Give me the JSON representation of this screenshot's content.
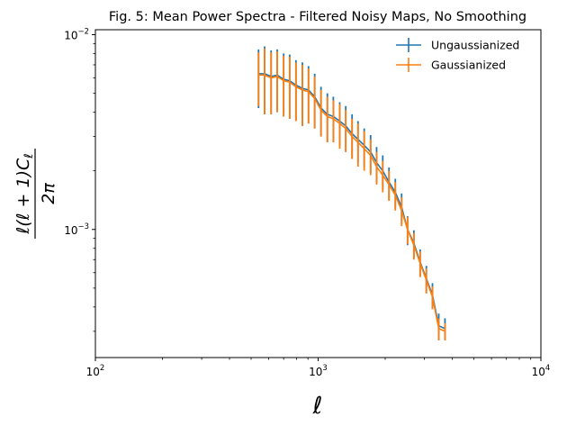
{
  "chart_data": {
    "type": "line",
    "title": "Fig. 5: Mean Power Spectra - Filtered Noisy Maps, No Smoothing",
    "xlabel": "ℓ",
    "ylabel": "ℓ(ℓ + 1)Cℓ / 2π",
    "ylabel_numerator": "ℓ(ℓ + 1)C",
    "ylabel_sub": "ℓ",
    "ylabel_denominator": "2π",
    "xscale": "log",
    "yscale": "log",
    "xlim": [
      100,
      10000
    ],
    "ylim": [
      0.00022,
      0.0106
    ],
    "x_ticks": [
      {
        "value": 100,
        "base": "10",
        "exp": "2"
      },
      {
        "value": 1000,
        "base": "10",
        "exp": "3"
      },
      {
        "value": 10000,
        "base": "10",
        "exp": "4"
      }
    ],
    "y_ticks": [
      {
        "value": 0.001,
        "base": "10",
        "exp": "−3"
      },
      {
        "value": 0.01,
        "base": "10",
        "exp": "−2"
      }
    ],
    "legend_position": "top-right",
    "grid": false,
    "x": [
      540,
      575,
      615,
      655,
      700,
      745,
      795,
      850,
      905,
      965,
      1030,
      1100,
      1170,
      1250,
      1330,
      1420,
      1510,
      1610,
      1720,
      1830,
      1950,
      2080,
      2220,
      2370,
      2520,
      2690,
      2870,
      3060,
      3260,
      3480,
      3710
    ],
    "series": [
      {
        "name": "Ungaussianized",
        "color": "#1f77b4",
        "values": [
          0.0063,
          0.0063,
          0.0061,
          0.0062,
          0.0059,
          0.0058,
          0.0055,
          0.0053,
          0.0052,
          0.0048,
          0.0042,
          0.0039,
          0.0038,
          0.0036,
          0.0034,
          0.0031,
          0.0029,
          0.0027,
          0.0025,
          0.0022,
          0.002,
          0.00175,
          0.00155,
          0.0013,
          0.001,
          0.00085,
          0.00068,
          0.00056,
          0.00046,
          0.00032,
          0.00031
        ],
        "err": [
          0.0021,
          0.0024,
          0.0022,
          0.0022,
          0.0021,
          0.0021,
          0.0019,
          0.0019,
          0.0017,
          0.0015,
          0.0012,
          0.0011,
          0.001,
          0.0009,
          0.0009,
          0.0008,
          0.0007,
          0.0006,
          0.00055,
          0.00045,
          0.0004,
          0.00033,
          0.00027,
          0.00023,
          0.00017,
          0.00014,
          0.00011,
          9e-05,
          7e-05,
          5e-05,
          4e-05
        ]
      },
      {
        "name": "Gaussianized",
        "color": "#ff7f0e",
        "values": [
          0.0062,
          0.0062,
          0.006,
          0.0061,
          0.0058,
          0.0057,
          0.0054,
          0.0052,
          0.0051,
          0.0047,
          0.0041,
          0.0038,
          0.0037,
          0.0035,
          0.0033,
          0.003,
          0.0028,
          0.0026,
          0.0024,
          0.0021,
          0.0019,
          0.0017,
          0.0015,
          0.00125,
          0.001,
          0.00083,
          0.00067,
          0.00055,
          0.00045,
          0.00031,
          0.0003
        ],
        "err": [
          0.0019,
          0.0023,
          0.0021,
          0.0021,
          0.002,
          0.002,
          0.0018,
          0.0018,
          0.0016,
          0.0014,
          0.0011,
          0.001,
          0.0009,
          0.0009,
          0.0008,
          0.0007,
          0.0007,
          0.0006,
          0.0005,
          0.0004,
          0.00035,
          0.0003,
          0.00025,
          0.00021,
          0.00016,
          0.00013,
          0.0001,
          8e-05,
          6e-05,
          4e-05,
          3e-05
        ]
      }
    ]
  }
}
